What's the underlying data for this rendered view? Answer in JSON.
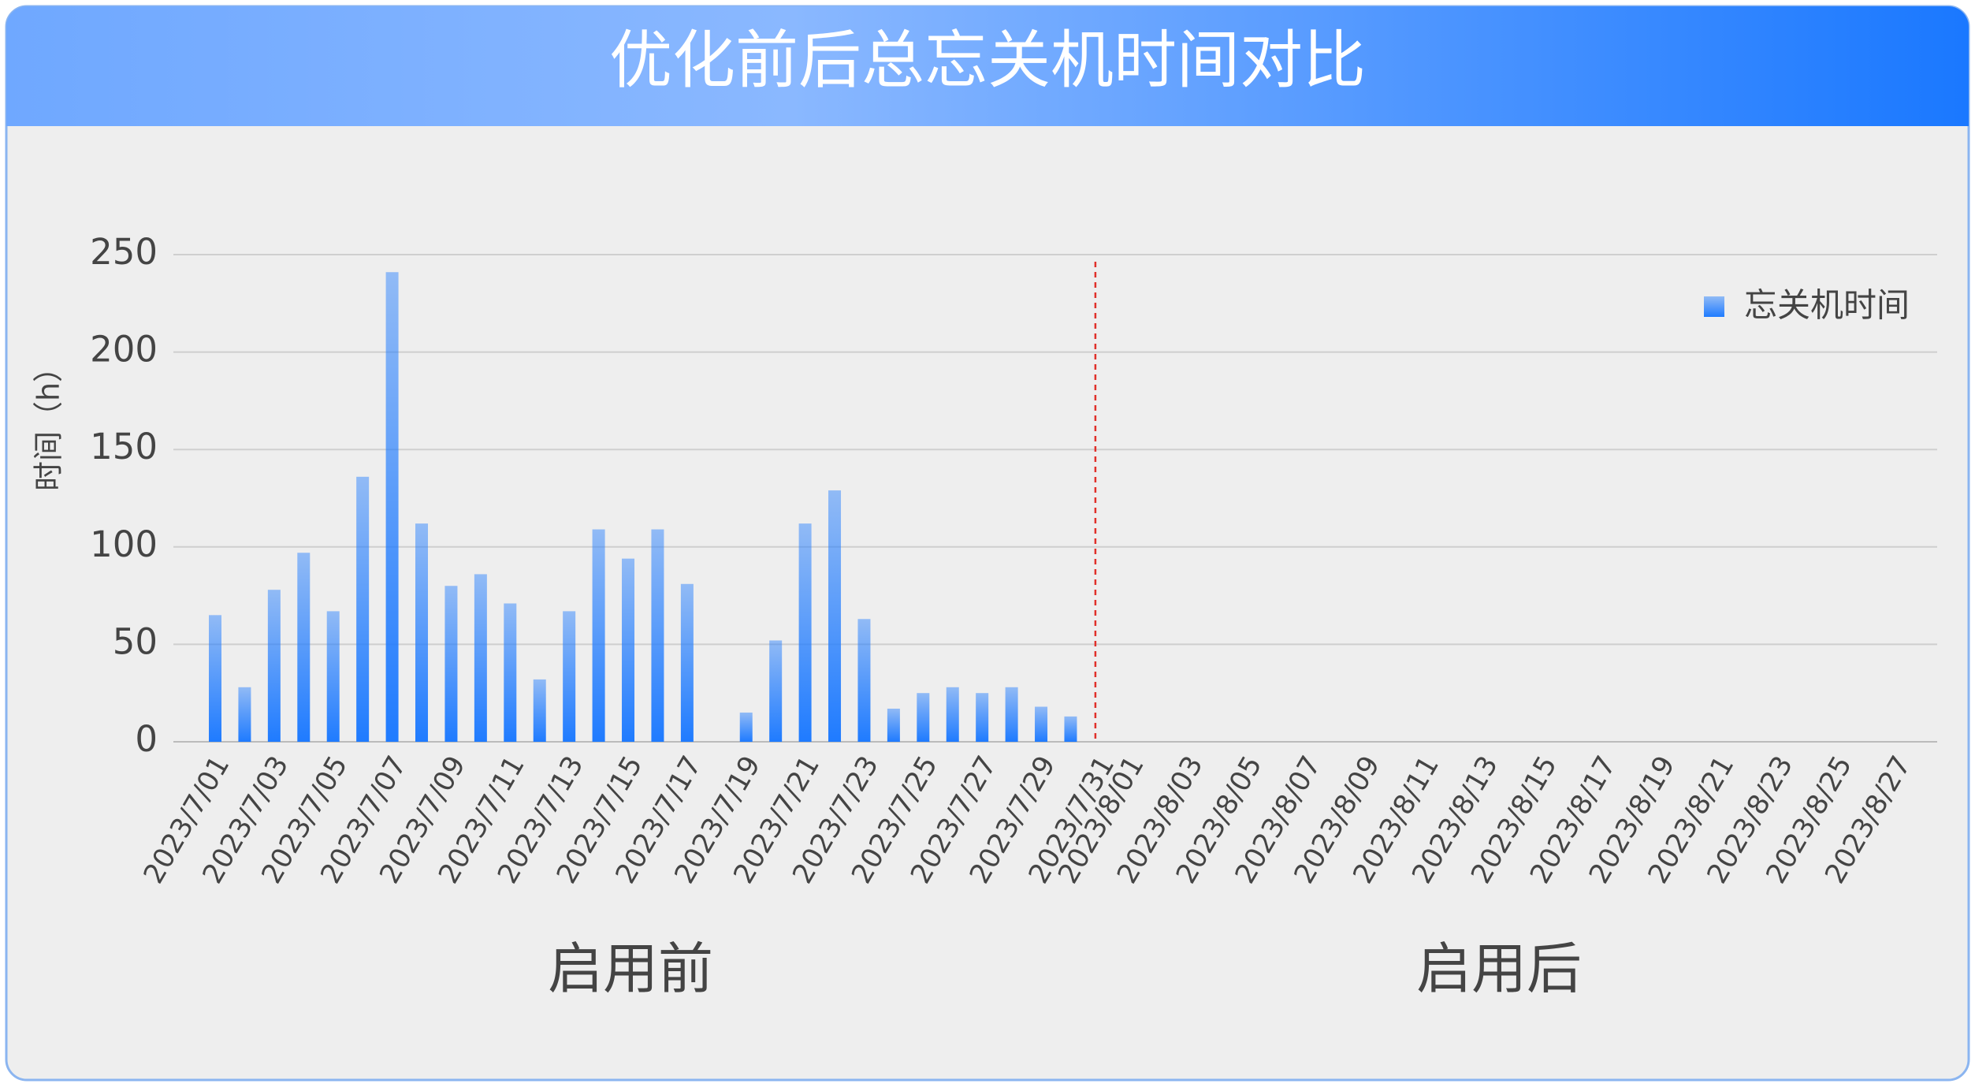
{
  "chart_data": {
    "type": "bar",
    "title": "优化前后总忘关机时间对比",
    "y_label": "时间（h）",
    "annotations": [
      "启用前",
      "启用后"
    ],
    "categories": [
      "2023/7/01",
      null,
      "2023/7/03",
      null,
      "2023/7/05",
      null,
      "2023/7/07",
      null,
      "2023/7/09",
      null,
      "2023/7/11",
      null,
      "2023/7/13",
      null,
      "2023/7/15",
      null,
      "2023/7/17",
      null,
      "2023/7/19",
      null,
      "2023/7/21",
      null,
      "2023/7/23",
      null,
      "2023/7/25",
      null,
      "2023/7/27",
      null,
      "2023/7/29",
      null,
      "2023/7/31",
      "2023/8/01",
      null,
      "2023/8/03",
      null,
      "2023/8/05",
      null,
      "2023/8/07",
      null,
      "2023/8/09",
      null,
      "2023/8/11",
      null,
      "2023/8/13",
      null,
      "2023/8/15",
      null,
      "2023/8/17",
      null,
      "2023/8/19",
      null,
      "2023/8/21",
      null,
      "2023/8/23",
      null,
      "2023/8/25",
      null,
      "2023/8/27"
    ],
    "series": [
      {
        "name": "忘关机时间",
        "color": "#1f7bff",
        "values": [
          65,
          28,
          78,
          97,
          67,
          136,
          241,
          112,
          80,
          86,
          71,
          32,
          67,
          109,
          94,
          109,
          81,
          null,
          15,
          52,
          112,
          129,
          63,
          17,
          25,
          28,
          25,
          28,
          18,
          13,
          null,
          null,
          null,
          null,
          null,
          null,
          null,
          null,
          null,
          null,
          null,
          null,
          null,
          null,
          null,
          null,
          null,
          null,
          null,
          null,
          null,
          null,
          null,
          null,
          null,
          null,
          null,
          null
        ]
      }
    ],
    "ylim": [
      0,
      250
    ],
    "yticks": [
      0,
      50,
      100,
      150,
      200,
      250
    ],
    "grid": true,
    "legend": "top-right"
  }
}
